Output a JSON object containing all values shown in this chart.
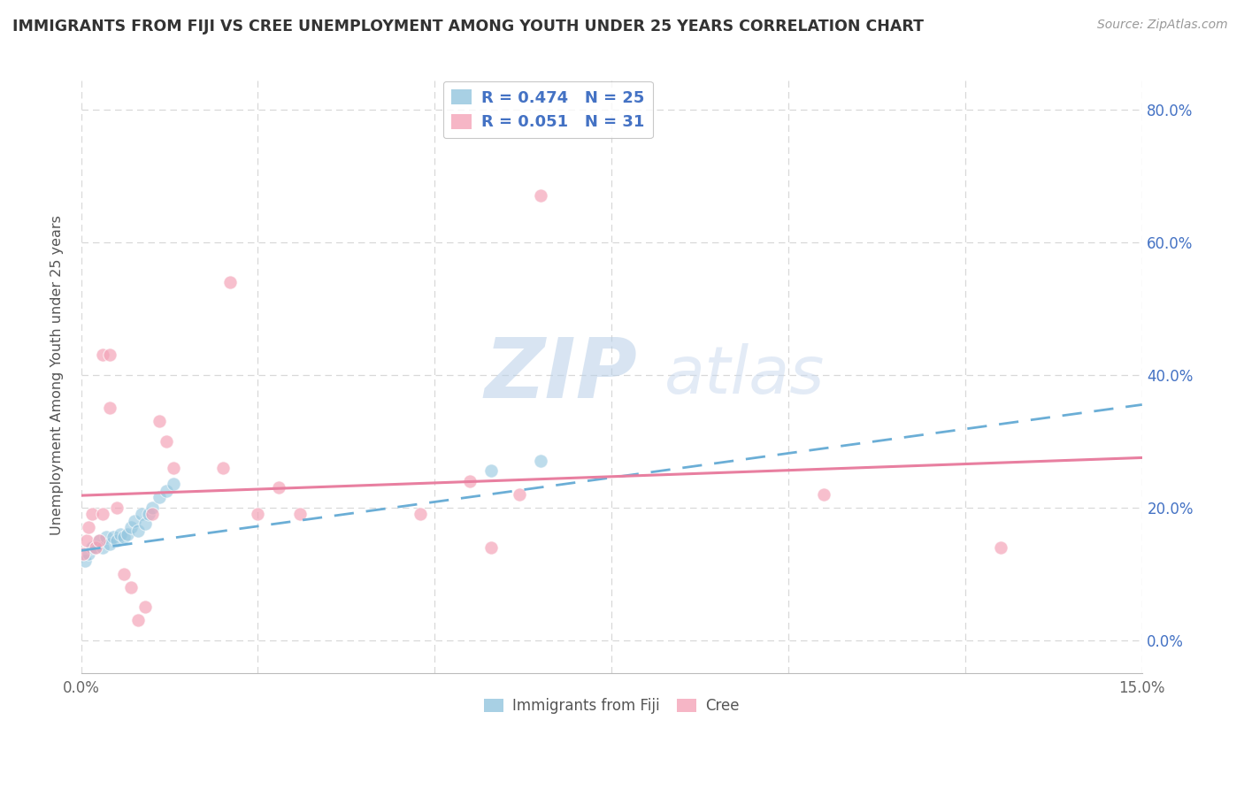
{
  "title": "IMMIGRANTS FROM FIJI VS CREE UNEMPLOYMENT AMONG YOUTH UNDER 25 YEARS CORRELATION CHART",
  "source": "Source: ZipAtlas.com",
  "ylabel": "Unemployment Among Youth under 25 years",
  "xlim": [
    0.0,
    0.15
  ],
  "ylim": [
    -0.05,
    0.85
  ],
  "xticks": [
    0.0,
    0.025,
    0.05,
    0.075,
    0.1,
    0.125,
    0.15
  ],
  "yticks": [
    0.0,
    0.2,
    0.4,
    0.6,
    0.8
  ],
  "ytick_right_labels": [
    "0.0%",
    "20.0%",
    "40.0%",
    "60.0%",
    "80.0%"
  ],
  "xtick_labels": [
    "0.0%",
    "",
    "",
    "",
    "",
    "",
    "15.0%"
  ],
  "legend1_r": "0.474",
  "legend1_n": "25",
  "legend2_r": "0.051",
  "legend2_n": "31",
  "fiji_color": "#92c5de",
  "cree_color": "#f4a4b8",
  "fiji_line_color": "#6baed6",
  "cree_line_color": "#e87fa0",
  "fiji_scatter_x": [
    0.0005,
    0.001,
    0.0015,
    0.002,
    0.0025,
    0.003,
    0.0035,
    0.004,
    0.0045,
    0.005,
    0.0055,
    0.006,
    0.0065,
    0.007,
    0.0075,
    0.008,
    0.0085,
    0.009,
    0.0095,
    0.01,
    0.011,
    0.012,
    0.013,
    0.058,
    0.065
  ],
  "fiji_scatter_y": [
    0.12,
    0.13,
    0.14,
    0.14,
    0.15,
    0.14,
    0.155,
    0.145,
    0.155,
    0.15,
    0.16,
    0.155,
    0.16,
    0.17,
    0.18,
    0.165,
    0.19,
    0.175,
    0.19,
    0.2,
    0.215,
    0.225,
    0.235,
    0.255,
    0.27
  ],
  "cree_scatter_x": [
    0.0003,
    0.0008,
    0.001,
    0.0015,
    0.002,
    0.0025,
    0.003,
    0.003,
    0.004,
    0.004,
    0.005,
    0.006,
    0.007,
    0.008,
    0.009,
    0.01,
    0.011,
    0.012,
    0.013,
    0.02,
    0.021,
    0.025,
    0.028,
    0.031,
    0.048,
    0.055,
    0.058,
    0.062,
    0.065,
    0.105,
    0.13
  ],
  "cree_scatter_y": [
    0.13,
    0.15,
    0.17,
    0.19,
    0.14,
    0.15,
    0.19,
    0.43,
    0.43,
    0.35,
    0.2,
    0.1,
    0.08,
    0.03,
    0.05,
    0.19,
    0.33,
    0.3,
    0.26,
    0.26,
    0.54,
    0.19,
    0.23,
    0.19,
    0.19,
    0.24,
    0.14,
    0.22,
    0.67,
    0.22,
    0.14
  ],
  "fiji_trend_x": [
    0.0,
    0.15
  ],
  "fiji_trend_y": [
    0.135,
    0.355
  ],
  "cree_trend_x": [
    0.0,
    0.15
  ],
  "cree_trend_y": [
    0.218,
    0.275
  ],
  "watermark_zip": "ZIP",
  "watermark_atlas": "atlas",
  "background_color": "#ffffff",
  "grid_color": "#d8d8d8"
}
